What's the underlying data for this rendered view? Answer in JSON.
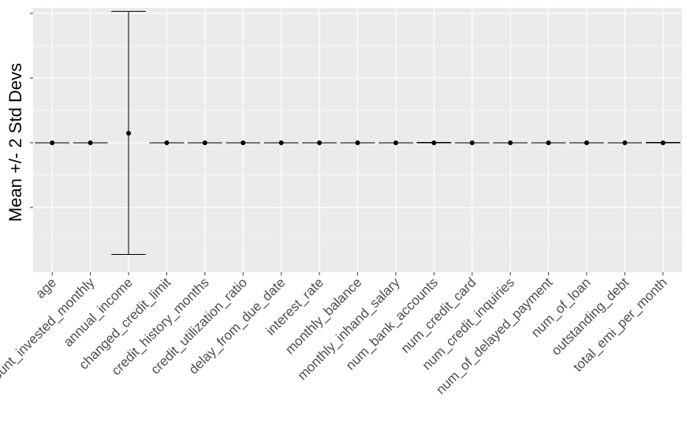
{
  "chart_data": {
    "type": "scatter",
    "subtype": "point-with-errorbars",
    "title": "",
    "xlabel": "",
    "ylabel": "Mean +/- 2 Std Devs",
    "y_tick_labels_visible": false,
    "ylim": [
      -1.9,
      1.98
    ],
    "y_ticks": [
      -0.95,
      0,
      0.95,
      1.9
    ],
    "grid": true,
    "background": "#ebebeb",
    "grid_color": "#ffffff",
    "point_color": "#000000",
    "categories": [
      "age",
      "amount_invested_monthly",
      "annual_income",
      "changed_credit_limit",
      "credit_history_months",
      "credit_utilization_ratio",
      "delay_from_due_date",
      "interest_rate",
      "monthly_balance",
      "monthly_inhand_salary",
      "num_bank_accounts",
      "num_credit_card",
      "num_credit_inquiries",
      "num_of_delayed_payment",
      "num_of_loan",
      "outstanding_debt",
      "total_emi_per_month"
    ],
    "series": [
      {
        "mean": [
          0,
          0,
          0.14,
          0,
          0,
          0,
          0,
          0,
          0,
          0,
          0,
          0,
          0,
          0,
          0,
          0,
          0
        ],
        "lower": [
          0,
          0,
          -1.64,
          0,
          0,
          0,
          0,
          0,
          0,
          0,
          0,
          0,
          0,
          0,
          0,
          0,
          0
        ],
        "upper": [
          0,
          0,
          1.93,
          0,
          0,
          0,
          0,
          0,
          0,
          0,
          0.005,
          0,
          0,
          0,
          0,
          0,
          0.005
        ]
      }
    ]
  }
}
